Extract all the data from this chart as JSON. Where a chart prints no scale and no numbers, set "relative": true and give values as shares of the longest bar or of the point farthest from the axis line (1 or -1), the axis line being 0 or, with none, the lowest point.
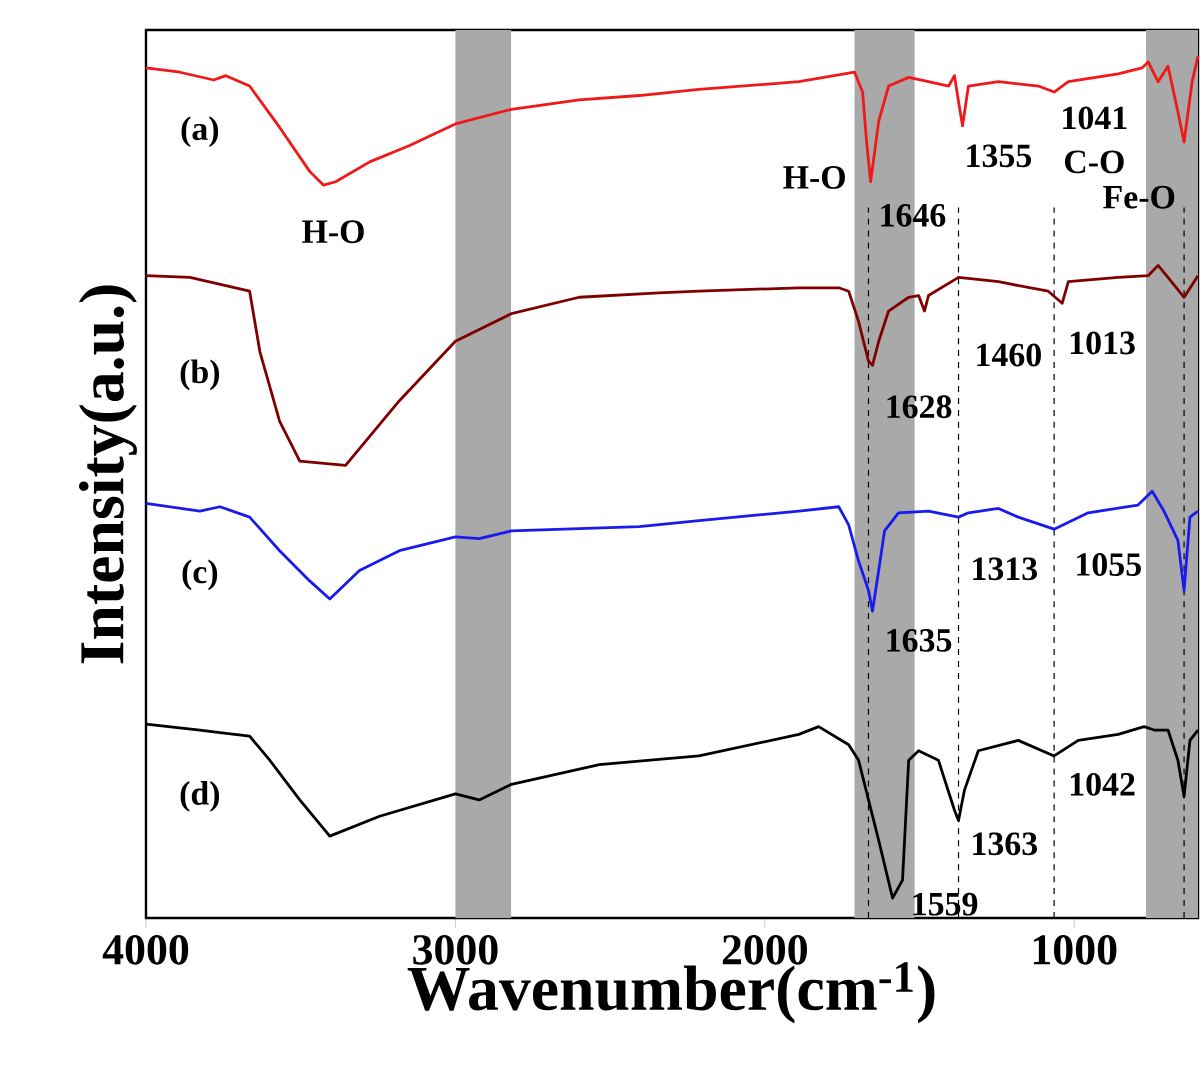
{
  "chart_data": {
    "type": "line",
    "relative": true,
    "xlabel": "Wavenumber(cm$^{-1}$)",
    "ylabel": "Intensity(a.u.)",
    "xlim": [
      4000,
      600
    ],
    "xticks": [
      4000,
      3000,
      2000,
      1000
    ],
    "series": [
      {
        "color": "#f01818",
        "x": [
          4000,
          3890,
          3781,
          3742,
          3665,
          3568,
          3471,
          3426,
          3387,
          3277,
          3148,
          3000,
          2819,
          2600,
          2406,
          2213,
          1890,
          1710,
          1684,
          1671,
          1658,
          1632,
          1600,
          1535,
          1471,
          1406,
          1387,
          1374,
          1361,
          1342,
          1245,
          1116,
          1065,
          1019,
          858,
          781,
          761,
          729,
          697,
          665,
          645,
          619,
          600
        ],
        "values": [
          0.986,
          0.981,
          0.972,
          0.977,
          0.965,
          0.917,
          0.866,
          0.85,
          0.854,
          0.877,
          0.896,
          0.921,
          0.938,
          0.949,
          0.954,
          0.961,
          0.97,
          0.981,
          0.958,
          0.9,
          0.854,
          0.924,
          0.965,
          0.975,
          0.97,
          0.965,
          0.977,
          0.947,
          0.919,
          0.965,
          0.97,
          0.965,
          0.958,
          0.97,
          0.979,
          0.986,
          0.993,
          0.97,
          0.988,
          0.935,
          0.9,
          0.97,
          1
        ]
      },
      {
        "color": "#800000",
        "x": [
          4000,
          3858,
          3665,
          3632,
          3568,
          3503,
          3355,
          3181,
          3000,
          2819,
          2600,
          2342,
          2213,
          1890,
          1761,
          1729,
          1697,
          1665,
          1652,
          1632,
          1600,
          1535,
          1503,
          1484,
          1471,
          1374,
          1245,
          1084,
          1039,
          1019,
          858,
          761,
          729,
          697,
          645,
          600
        ],
        "values": [
          0.745,
          0.743,
          0.727,
          0.657,
          0.576,
          0.53,
          0.525,
          0.6,
          0.669,
          0.701,
          0.72,
          0.725,
          0.727,
          0.731,
          0.731,
          0.727,
          0.692,
          0.646,
          0.641,
          0.669,
          0.704,
          0.72,
          0.722,
          0.704,
          0.722,
          0.743,
          0.738,
          0.727,
          0.713,
          0.738,
          0.743,
          0.745,
          0.757,
          0.743,
          0.72,
          0.745
        ]
      },
      {
        "color": "#1a1aee",
        "x": [
          4000,
          3826,
          3761,
          3665,
          3568,
          3471,
          3406,
          3310,
          3181,
          3000,
          2923,
          2819,
          2406,
          2213,
          1890,
          1761,
          1729,
          1697,
          1665,
          1652,
          1632,
          1613,
          1568,
          1471,
          1374,
          1342,
          1245,
          1181,
          1065,
          955,
          794,
          748,
          710,
          665,
          645,
          626,
          600
        ],
        "values": [
          0.481,
          0.472,
          0.477,
          0.465,
          0.426,
          0.391,
          0.37,
          0.403,
          0.426,
          0.442,
          0.44,
          0.449,
          0.454,
          0.461,
          0.472,
          0.477,
          0.456,
          0.414,
          0.38,
          0.356,
          0.403,
          0.449,
          0.47,
          0.472,
          0.465,
          0.47,
          0.475,
          0.465,
          0.451,
          0.47,
          0.479,
          0.495,
          0.472,
          0.438,
          0.38,
          0.465,
          0.472
        ]
      },
      {
        "color": "#000000",
        "x": [
          4000,
          3826,
          3761,
          3665,
          3600,
          3503,
          3406,
          3245,
          3000,
          2923,
          2819,
          2535,
          2213,
          1890,
          1826,
          1729,
          1697,
          1632,
          1587,
          1555,
          1535,
          1503,
          1439,
          1387,
          1374,
          1355,
          1310,
          1181,
          1065,
          987,
          858,
          774,
          742,
          697,
          665,
          645,
          626,
          600
        ],
        "values": [
          0.225,
          0.218,
          0.215,
          0.211,
          0.183,
          0.137,
          0.095,
          0.118,
          0.144,
          0.137,
          0.155,
          0.178,
          0.188,
          0.213,
          0.222,
          0.201,
          0.183,
          0.09,
          0.023,
          0.044,
          0.183,
          0.194,
          0.183,
          0.125,
          0.113,
          0.148,
          0.194,
          0.206,
          0.188,
          0.206,
          0.213,
          0.222,
          0.218,
          0.218,
          0.183,
          0.141,
          0.206,
          0.218
        ]
      }
    ],
    "bands": [
      {
        "axis": "x",
        "from": 3000,
        "to": 2820,
        "color": "#a9a9a9"
      },
      {
        "axis": "x",
        "from": 1710,
        "to": 1516,
        "color": "#a9a9a9"
      },
      {
        "axis": "x",
        "from": 768,
        "to": 600,
        "color": "#a9a9a9"
      }
    ],
    "ref_lines": [
      {
        "axis": "x",
        "value": 1665,
        "line_style": "dashed",
        "color": "#000000"
      },
      {
        "axis": "x",
        "value": 1374,
        "line_style": "dashed",
        "color": "#000000"
      },
      {
        "axis": "x",
        "value": 1065,
        "line_style": "dashed",
        "color": "#000000"
      },
      {
        "axis": "x",
        "value": 645,
        "line_style": "dashed",
        "color": "#000000"
      }
    ],
    "annotations": [
      "(a)",
      "(b)",
      "(c)",
      "(d)",
      "H-O",
      "H-O",
      "1646",
      "1355",
      "1041",
      "C-O",
      "Fe-O",
      "1628",
      "1460",
      "1013",
      "1635",
      "1313",
      "1055",
      "1042",
      "1363",
      "1559"
    ]
  }
}
